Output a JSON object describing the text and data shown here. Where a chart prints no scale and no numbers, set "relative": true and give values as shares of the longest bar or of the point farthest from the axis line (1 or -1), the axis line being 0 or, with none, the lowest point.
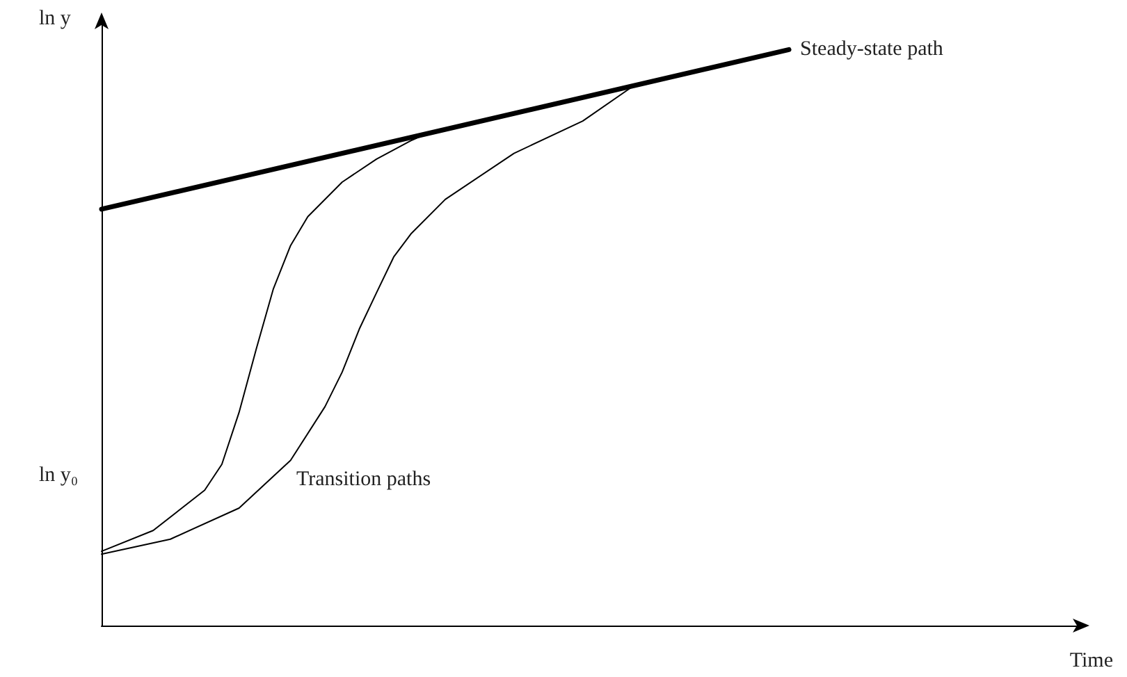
{
  "chart_data": {
    "type": "line",
    "relative": true,
    "xlabel": "Time",
    "ylabel": "ln y",
    "grid": false,
    "legend": false,
    "marker": "none",
    "line_style": "solid",
    "annotations": [
      "ln y₀",
      "Transition paths"
    ],
    "categories": [
      null,
      null,
      null,
      null,
      null,
      null,
      null,
      null,
      null,
      null,
      null,
      null,
      null,
      null,
      null,
      null,
      null,
      null,
      null,
      null,
      null,
      null,
      null,
      null,
      null,
      null,
      null,
      null,
      null,
      null,
      null,
      null,
      null,
      null,
      null,
      null,
      null,
      null,
      null,
      null,
      null,
      null,
      null,
      null,
      null,
      null,
      null,
      null,
      null,
      null,
      null,
      null,
      null,
      null,
      null,
      null,
      null,
      null
    ],
    "series": [
      {
        "name": "Steady-state path",
        "color": "#000000",
        "values": [
          0.723,
          null,
          null,
          null,
          null,
          null,
          null,
          null,
          null,
          null,
          null,
          null,
          null,
          null,
          null,
          null,
          null,
          null,
          null,
          null,
          null,
          null,
          null,
          null,
          null,
          null,
          null,
          null,
          null,
          null,
          null,
          null,
          null,
          null,
          null,
          null,
          null,
          null,
          null,
          null,
          1,
          null,
          null,
          null,
          null,
          null,
          null,
          null,
          null,
          null,
          null,
          null,
          null,
          null,
          null,
          null,
          null,
          null
        ]
      },
      {
        "color": "#000000",
        "values": [
          0.129,
          null,
          null,
          0.165,
          null,
          null,
          0.235,
          0.28,
          0.37,
          0.48,
          0.585,
          0.66,
          0.71,
          null,
          0.77,
          null,
          0.81,
          null,
          0.842,
          0.855,
          null,
          null,
          null,
          null,
          null,
          null,
          null,
          null,
          null,
          null,
          null,
          null,
          null,
          null,
          null,
          null,
          null,
          null,
          null,
          null,
          null,
          null,
          null,
          null,
          null,
          null,
          null,
          null,
          null,
          null,
          null,
          null,
          null,
          null,
          null,
          null,
          null,
          null
        ]
      },
      {
        "color": "#000000",
        "values": [
          0.124,
          null,
          null,
          null,
          0.15,
          null,
          null,
          null,
          0.204,
          null,
          null,
          0.287,
          null,
          0.38,
          0.44,
          0.515,
          0.578,
          0.64,
          0.68,
          null,
          0.74,
          null,
          null,
          null,
          0.82,
          null,
          null,
          null,
          0.876,
          null,
          null,
          0.938,
          null,
          null,
          null,
          null,
          null,
          null,
          null,
          null,
          null,
          null,
          null,
          null,
          null,
          null,
          null,
          null,
          null,
          null,
          null,
          null,
          null,
          null,
          null,
          null,
          null,
          null
        ]
      }
    ]
  }
}
